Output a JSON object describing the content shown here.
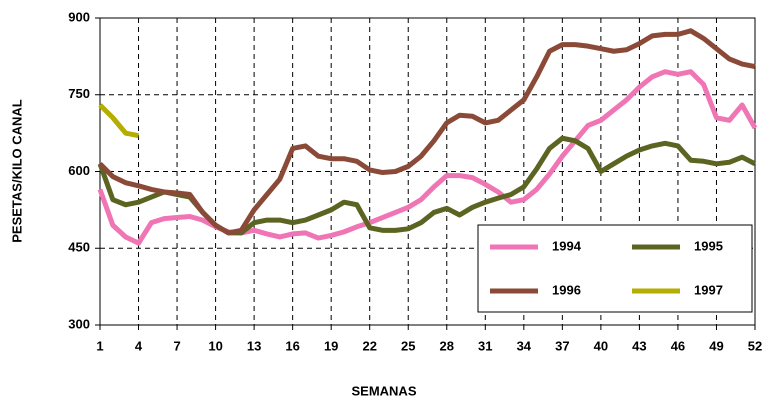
{
  "chart_data": {
    "type": "line",
    "xlabel": "SEMANAS",
    "ylabel": "PESETAS/KILO CANAL",
    "x": [
      1,
      2,
      3,
      4,
      5,
      6,
      7,
      8,
      9,
      10,
      11,
      12,
      13,
      14,
      15,
      16,
      17,
      18,
      19,
      20,
      21,
      22,
      23,
      24,
      25,
      26,
      27,
      28,
      29,
      30,
      31,
      32,
      33,
      34,
      35,
      36,
      37,
      38,
      39,
      40,
      41,
      42,
      43,
      44,
      45,
      46,
      47,
      48,
      49,
      50,
      51,
      52
    ],
    "xlim": [
      1,
      52
    ],
    "xticks": [
      1,
      4,
      7,
      10,
      13,
      16,
      19,
      22,
      25,
      28,
      31,
      34,
      37,
      40,
      43,
      46,
      49,
      52
    ],
    "ylim": [
      300,
      900
    ],
    "yticks": [
      300,
      450,
      600,
      750,
      900
    ],
    "grid": true,
    "series": [
      {
        "name": "1994",
        "color": "#f075b5",
        "values": [
          565,
          495,
          472,
          460,
          500,
          508,
          510,
          512,
          505,
          492,
          482,
          480,
          485,
          478,
          472,
          478,
          480,
          470,
          475,
          482,
          492,
          500,
          510,
          520,
          530,
          545,
          570,
          592,
          592,
          588,
          575,
          560,
          540,
          545,
          565,
          595,
          630,
          660,
          690,
          700,
          720,
          740,
          765,
          785,
          795,
          790,
          795,
          770,
          705,
          700,
          730,
          685
        ]
      },
      {
        "name": "1995",
        "color": "#5c6422",
        "values": [
          615,
          545,
          535,
          540,
          550,
          560,
          555,
          550,
          520,
          495,
          480,
          480,
          500,
          505,
          505,
          500,
          505,
          515,
          525,
          540,
          535,
          490,
          485,
          485,
          488,
          500,
          520,
          528,
          515,
          530,
          540,
          548,
          555,
          570,
          605,
          645,
          665,
          660,
          645,
          600,
          615,
          630,
          642,
          650,
          655,
          650,
          622,
          620,
          615,
          618,
          628,
          615
        ]
      },
      {
        "name": "1996",
        "color": "#8b4a38",
        "values": [
          615,
          590,
          578,
          572,
          565,
          560,
          558,
          555,
          520,
          495,
          480,
          485,
          525,
          555,
          585,
          645,
          650,
          630,
          625,
          625,
          620,
          603,
          598,
          600,
          610,
          630,
          660,
          695,
          710,
          708,
          695,
          700,
          720,
          740,
          785,
          835,
          848,
          848,
          845,
          840,
          835,
          838,
          850,
          865,
          868,
          868,
          875,
          860,
          840,
          820,
          810,
          805
        ]
      },
      {
        "name": "1997",
        "color": "#b5ae00",
        "values": [
          730,
          705,
          675,
          670,
          null,
          null,
          null,
          null,
          null,
          null,
          null,
          null,
          null,
          null,
          null,
          null,
          null,
          null,
          null,
          null,
          null,
          null,
          null,
          null,
          null,
          null,
          null,
          null,
          null,
          null,
          null,
          null,
          null,
          null,
          null,
          null,
          null,
          null,
          null,
          null,
          null,
          null,
          null,
          null,
          null,
          null,
          null,
          null,
          null,
          null,
          null,
          null
        ]
      }
    ]
  }
}
